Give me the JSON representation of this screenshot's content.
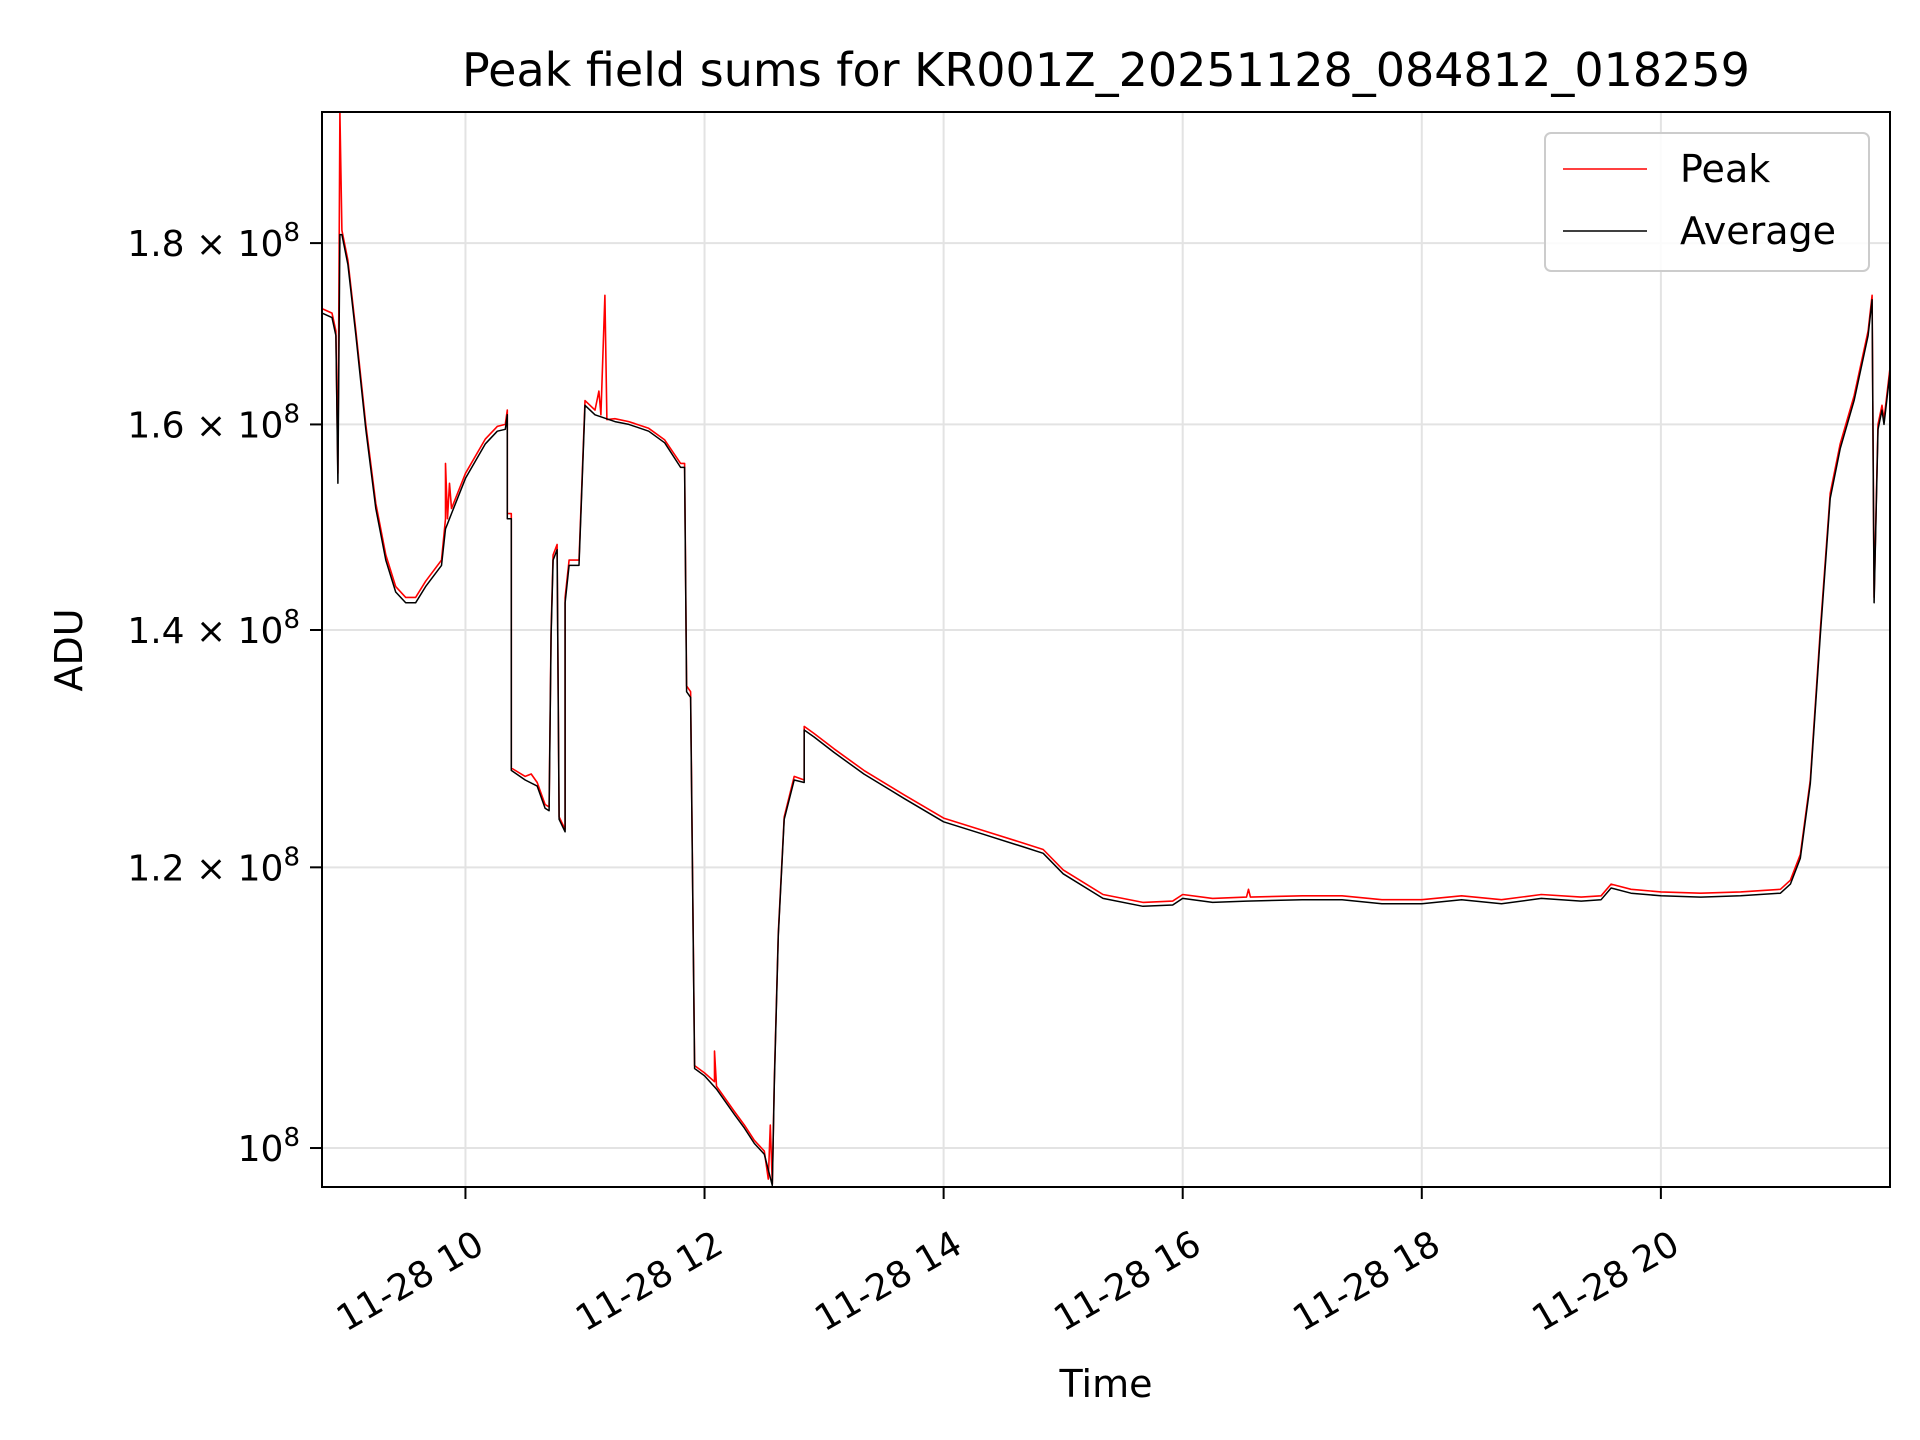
{
  "chart_data": {
    "type": "line",
    "title": "Peak field sums for KR001Z_20251128_084812_018259",
    "xlabel": "Time",
    "ylabel": "ADU",
    "x_scale": "time",
    "y_scale": "log",
    "xlim": [
      "2025-11-28 08:48",
      "2025-11-28 21:55"
    ],
    "ylim": [
      97500000,
      196000000
    ],
    "grid": true,
    "legend_position": "upper right",
    "x_ticks": [
      {
        "value": "2025-11-28 10:00",
        "label": "11-28 10"
      },
      {
        "value": "2025-11-28 12:00",
        "label": "11-28 12"
      },
      {
        "value": "2025-11-28 14:00",
        "label": "11-28 14"
      },
      {
        "value": "2025-11-28 16:00",
        "label": "11-28 16"
      },
      {
        "value": "2025-11-28 18:00",
        "label": "11-28 18"
      },
      {
        "value": "2025-11-28 20:00",
        "label": "11-28 20"
      }
    ],
    "y_ticks": [
      {
        "value": 100000000,
        "mantissa": "",
        "exponent": "8"
      },
      {
        "value": 120000000,
        "mantissa": "1.2",
        "exponent": "8"
      },
      {
        "value": 140000000,
        "mantissa": "1.4",
        "exponent": "8"
      },
      {
        "value": 160000000,
        "mantissa": "1.6",
        "exponent": "8"
      },
      {
        "value": 180000000,
        "mantissa": "1.8",
        "exponent": "8"
      }
    ],
    "series": [
      {
        "name": "Peak",
        "color": "#ff0000",
        "points": [
          [
            "2025-11-28 08:48",
            172500000
          ],
          [
            "2025-11-28 08:53",
            172000000
          ],
          [
            "2025-11-28 08:55",
            170000000
          ],
          [
            "2025-11-28 08:56",
            155000000
          ],
          [
            "2025-11-28 08:57",
            196000000
          ],
          [
            "2025-11-28 08:58",
            181500000
          ],
          [
            "2025-11-28 09:01",
            178000000
          ],
          [
            "2025-11-28 09:05",
            170000000
          ],
          [
            "2025-11-28 09:10",
            160000000
          ],
          [
            "2025-11-28 09:15",
            152000000
          ],
          [
            "2025-11-28 09:20",
            147000000
          ],
          [
            "2025-11-28 09:25",
            144000000
          ],
          [
            "2025-11-28 09:30",
            143000000
          ],
          [
            "2025-11-28 09:35",
            143000000
          ],
          [
            "2025-11-28 09:40",
            144500000
          ],
          [
            "2025-11-28 09:48",
            146500000
          ],
          [
            "2025-11-28 09:50",
            150500000
          ],
          [
            "2025-11-28 09:50",
            156000000
          ],
          [
            "2025-11-28 09:51",
            150500000
          ],
          [
            "2025-11-28 09:52",
            154000000
          ],
          [
            "2025-11-28 09:53",
            151500000
          ],
          [
            "2025-11-28 10:00",
            155000000
          ],
          [
            "2025-11-28 10:10",
            158500000
          ],
          [
            "2025-11-28 10:16",
            159800000
          ],
          [
            "2025-11-28 10:20",
            160000000
          ],
          [
            "2025-11-28 10:21",
            161500000
          ],
          [
            "2025-11-28 10:21",
            151000000
          ],
          [
            "2025-11-28 10:23",
            151000000
          ],
          [
            "2025-11-28 10:23",
            128000000
          ],
          [
            "2025-11-28 10:30",
            127300000
          ],
          [
            "2025-11-28 10:33",
            127500000
          ],
          [
            "2025-11-28 10:36",
            126800000
          ],
          [
            "2025-11-28 10:40",
            125000000
          ],
          [
            "2025-11-28 10:42",
            124800000
          ],
          [
            "2025-11-28 10:43",
            140000000
          ],
          [
            "2025-11-28 10:44",
            147000000
          ],
          [
            "2025-11-28 10:46",
            148000000
          ],
          [
            "2025-11-28 10:47",
            124000000
          ],
          [
            "2025-11-28 10:50",
            123000000
          ],
          [
            "2025-11-28 10:50",
            143000000
          ],
          [
            "2025-11-28 10:52",
            146500000
          ],
          [
            "2025-11-28 10:57",
            146500000
          ],
          [
            "2025-11-28 11:00",
            162500000
          ],
          [
            "2025-11-28 11:05",
            161500000
          ],
          [
            "2025-11-28 11:07",
            163500000
          ],
          [
            "2025-11-28 11:08",
            161000000
          ],
          [
            "2025-11-28 11:10",
            174000000
          ],
          [
            "2025-11-28 11:11",
            160500000
          ],
          [
            "2025-11-28 11:15",
            160600000
          ],
          [
            "2025-11-28 11:22",
            160300000
          ],
          [
            "2025-11-28 11:32",
            159600000
          ],
          [
            "2025-11-28 11:40",
            158400000
          ],
          [
            "2025-11-28 11:48",
            156000000
          ],
          [
            "2025-11-28 11:50",
            156000000
          ],
          [
            "2025-11-28 11:51",
            135000000
          ],
          [
            "2025-11-28 11:53",
            134500000
          ],
          [
            "2025-11-28 11:55",
            105500000
          ],
          [
            "2025-11-28 12:00",
            105000000
          ],
          [
            "2025-11-28 12:05",
            104400000
          ],
          [
            "2025-11-28 12:05",
            106500000
          ],
          [
            "2025-11-28 12:06",
            104100000
          ],
          [
            "2025-11-28 12:15",
            102400000
          ],
          [
            "2025-11-28 12:20",
            101500000
          ],
          [
            "2025-11-28 12:25",
            100500000
          ],
          [
            "2025-11-28 12:30",
            99800000
          ],
          [
            "2025-11-28 12:32",
            98000000
          ],
          [
            "2025-11-28 12:33",
            101500000
          ],
          [
            "2025-11-28 12:34",
            97700000
          ],
          [
            "2025-11-28 12:35",
            104500000
          ],
          [
            "2025-11-28 12:37",
            115000000
          ],
          [
            "2025-11-28 12:40",
            124000000
          ],
          [
            "2025-11-28 12:45",
            127300000
          ],
          [
            "2025-11-28 12:50",
            127000000
          ],
          [
            "2025-11-28 12:50",
            131500000
          ],
          [
            "2025-11-28 12:55",
            130900000
          ],
          [
            "2025-11-28 13:05",
            129600000
          ],
          [
            "2025-11-28 13:20",
            127800000
          ],
          [
            "2025-11-28 13:40",
            125800000
          ],
          [
            "2025-11-28 14:00",
            123900000
          ],
          [
            "2025-11-28 14:20",
            122900000
          ],
          [
            "2025-11-28 14:40",
            121900000
          ],
          [
            "2025-11-28 14:50",
            121400000
          ],
          [
            "2025-11-28 15:00",
            119800000
          ],
          [
            "2025-11-28 15:20",
            117900000
          ],
          [
            "2025-11-28 15:40",
            117300000
          ],
          [
            "2025-11-28 15:55",
            117400000
          ],
          [
            "2025-11-28 16:00",
            117900000
          ],
          [
            "2025-11-28 16:15",
            117600000
          ],
          [
            "2025-11-28 16:32",
            117700000
          ],
          [
            "2025-11-28 16:33",
            118300000
          ],
          [
            "2025-11-28 16:34",
            117700000
          ],
          [
            "2025-11-28 17:00",
            117800000
          ],
          [
            "2025-11-28 17:20",
            117800000
          ],
          [
            "2025-11-28 17:40",
            117500000
          ],
          [
            "2025-11-28 18:00",
            117500000
          ],
          [
            "2025-11-28 18:20",
            117800000
          ],
          [
            "2025-11-28 18:40",
            117500000
          ],
          [
            "2025-11-28 19:00",
            117900000
          ],
          [
            "2025-11-28 19:20",
            117700000
          ],
          [
            "2025-11-28 19:30",
            117800000
          ],
          [
            "2025-11-28 19:35",
            118700000
          ],
          [
            "2025-11-28 19:45",
            118300000
          ],
          [
            "2025-11-28 20:00",
            118100000
          ],
          [
            "2025-11-28 20:20",
            118000000
          ],
          [
            "2025-11-28 20:40",
            118100000
          ],
          [
            "2025-11-28 21:00",
            118300000
          ],
          [
            "2025-11-28 21:05",
            119000000
          ],
          [
            "2025-11-28 21:10",
            121000000
          ],
          [
            "2025-11-28 21:15",
            127000000
          ],
          [
            "2025-11-28 21:20",
            140000000
          ],
          [
            "2025-11-28 21:25",
            153000000
          ],
          [
            "2025-11-28 21:30",
            158000000
          ],
          [
            "2025-11-28 21:37",
            163000000
          ],
          [
            "2025-11-28 21:44",
            170000000
          ],
          [
            "2025-11-28 21:46",
            174000000
          ],
          [
            "2025-11-28 21:47",
            143000000
          ],
          [
            "2025-11-28 21:49",
            160000000
          ],
          [
            "2025-11-28 21:51",
            162000000
          ],
          [
            "2025-11-28 21:52",
            160500000
          ],
          [
            "2025-11-28 21:55",
            166000000
          ]
        ]
      },
      {
        "name": "Average",
        "color": "#000000",
        "points": [
          [
            "2025-11-28 08:48",
            172000000
          ],
          [
            "2025-11-28 08:53",
            171500000
          ],
          [
            "2025-11-28 08:55",
            169500000
          ],
          [
            "2025-11-28 08:56",
            154000000
          ],
          [
            "2025-11-28 08:57",
            181000000
          ],
          [
            "2025-11-28 08:58",
            181000000
          ],
          [
            "2025-11-28 09:01",
            177500000
          ],
          [
            "2025-11-28 09:05",
            169500000
          ],
          [
            "2025-11-28 09:10",
            159500000
          ],
          [
            "2025-11-28 09:15",
            151500000
          ],
          [
            "2025-11-28 09:20",
            146500000
          ],
          [
            "2025-11-28 09:25",
            143500000
          ],
          [
            "2025-11-28 09:30",
            142500000
          ],
          [
            "2025-11-28 09:35",
            142500000
          ],
          [
            "2025-11-28 09:40",
            144000000
          ],
          [
            "2025-11-28 09:48",
            146000000
          ],
          [
            "2025-11-28 09:50",
            149500000
          ],
          [
            "2025-11-28 09:51",
            150000000
          ],
          [
            "2025-11-28 09:53",
            151000000
          ],
          [
            "2025-11-28 10:00",
            154500000
          ],
          [
            "2025-11-28 10:10",
            158000000
          ],
          [
            "2025-11-28 10:16",
            159300000
          ],
          [
            "2025-11-28 10:20",
            159500000
          ],
          [
            "2025-11-28 10:21",
            161000000
          ],
          [
            "2025-11-28 10:21",
            150500000
          ],
          [
            "2025-11-28 10:23",
            150500000
          ],
          [
            "2025-11-28 10:23",
            127800000
          ],
          [
            "2025-11-28 10:30",
            127000000
          ],
          [
            "2025-11-28 10:36",
            126500000
          ],
          [
            "2025-11-28 10:40",
            124700000
          ],
          [
            "2025-11-28 10:42",
            124500000
          ],
          [
            "2025-11-28 10:43",
            139500000
          ],
          [
            "2025-11-28 10:44",
            146500000
          ],
          [
            "2025-11-28 10:46",
            147500000
          ],
          [
            "2025-11-28 10:47",
            123800000
          ],
          [
            "2025-11-28 10:50",
            122800000
          ],
          [
            "2025-11-28 10:50",
            142500000
          ],
          [
            "2025-11-28 10:52",
            146000000
          ],
          [
            "2025-11-28 10:57",
            146000000
          ],
          [
            "2025-11-28 11:00",
            162000000
          ],
          [
            "2025-11-28 11:05",
            161000000
          ],
          [
            "2025-11-28 11:15",
            160300000
          ],
          [
            "2025-11-28 11:22",
            160000000
          ],
          [
            "2025-11-28 11:32",
            159300000
          ],
          [
            "2025-11-28 11:40",
            158100000
          ],
          [
            "2025-11-28 11:48",
            155600000
          ],
          [
            "2025-11-28 11:50",
            155600000
          ],
          [
            "2025-11-28 11:51",
            134500000
          ],
          [
            "2025-11-28 11:53",
            134000000
          ],
          [
            "2025-11-28 11:55",
            105300000
          ],
          [
            "2025-11-28 12:00",
            104800000
          ],
          [
            "2025-11-28 12:06",
            103900000
          ],
          [
            "2025-11-28 12:15",
            102200000
          ],
          [
            "2025-11-28 12:20",
            101300000
          ],
          [
            "2025-11-28 12:25",
            100300000
          ],
          [
            "2025-11-28 12:30",
            99600000
          ],
          [
            "2025-11-28 12:34",
            97600000
          ],
          [
            "2025-11-28 12:35",
            104200000
          ],
          [
            "2025-11-28 12:37",
            114800000
          ],
          [
            "2025-11-28 12:40",
            123800000
          ],
          [
            "2025-11-28 12:45",
            127000000
          ],
          [
            "2025-11-28 12:50",
            126800000
          ],
          [
            "2025-11-28 12:50",
            131200000
          ],
          [
            "2025-11-28 12:55",
            130600000
          ],
          [
            "2025-11-28 13:05",
            129300000
          ],
          [
            "2025-11-28 13:20",
            127500000
          ],
          [
            "2025-11-28 13:40",
            125500000
          ],
          [
            "2025-11-28 14:00",
            123600000
          ],
          [
            "2025-11-28 14:20",
            122600000
          ],
          [
            "2025-11-28 14:40",
            121600000
          ],
          [
            "2025-11-28 14:50",
            121100000
          ],
          [
            "2025-11-28 15:00",
            119500000
          ],
          [
            "2025-11-28 15:20",
            117600000
          ],
          [
            "2025-11-28 15:40",
            117000000
          ],
          [
            "2025-11-28 15:55",
            117100000
          ],
          [
            "2025-11-28 16:00",
            117600000
          ],
          [
            "2025-11-28 16:15",
            117300000
          ],
          [
            "2025-11-28 16:32",
            117400000
          ],
          [
            "2025-11-28 17:00",
            117500000
          ],
          [
            "2025-11-28 17:20",
            117500000
          ],
          [
            "2025-11-28 17:40",
            117200000
          ],
          [
            "2025-11-28 18:00",
            117200000
          ],
          [
            "2025-11-28 18:20",
            117500000
          ],
          [
            "2025-11-28 18:40",
            117200000
          ],
          [
            "2025-11-28 19:00",
            117600000
          ],
          [
            "2025-11-28 19:20",
            117400000
          ],
          [
            "2025-11-28 19:30",
            117500000
          ],
          [
            "2025-11-28 19:35",
            118400000
          ],
          [
            "2025-11-28 19:45",
            118000000
          ],
          [
            "2025-11-28 20:00",
            117800000
          ],
          [
            "2025-11-28 20:20",
            117700000
          ],
          [
            "2025-11-28 20:40",
            117800000
          ],
          [
            "2025-11-28 21:00",
            118000000
          ],
          [
            "2025-11-28 21:05",
            118700000
          ],
          [
            "2025-11-28 21:10",
            120700000
          ],
          [
            "2025-11-28 21:15",
            126700000
          ],
          [
            "2025-11-28 21:20",
            139500000
          ],
          [
            "2025-11-28 21:25",
            152500000
          ],
          [
            "2025-11-28 21:30",
            157500000
          ],
          [
            "2025-11-28 21:37",
            162500000
          ],
          [
            "2025-11-28 21:44",
            169500000
          ],
          [
            "2025-11-28 21:46",
            173500000
          ],
          [
            "2025-11-28 21:47",
            142500000
          ],
          [
            "2025-11-28 21:49",
            159500000
          ],
          [
            "2025-11-28 21:51",
            161500000
          ],
          [
            "2025-11-28 21:52",
            160000000
          ],
          [
            "2025-11-28 21:55",
            165500000
          ]
        ]
      }
    ]
  }
}
